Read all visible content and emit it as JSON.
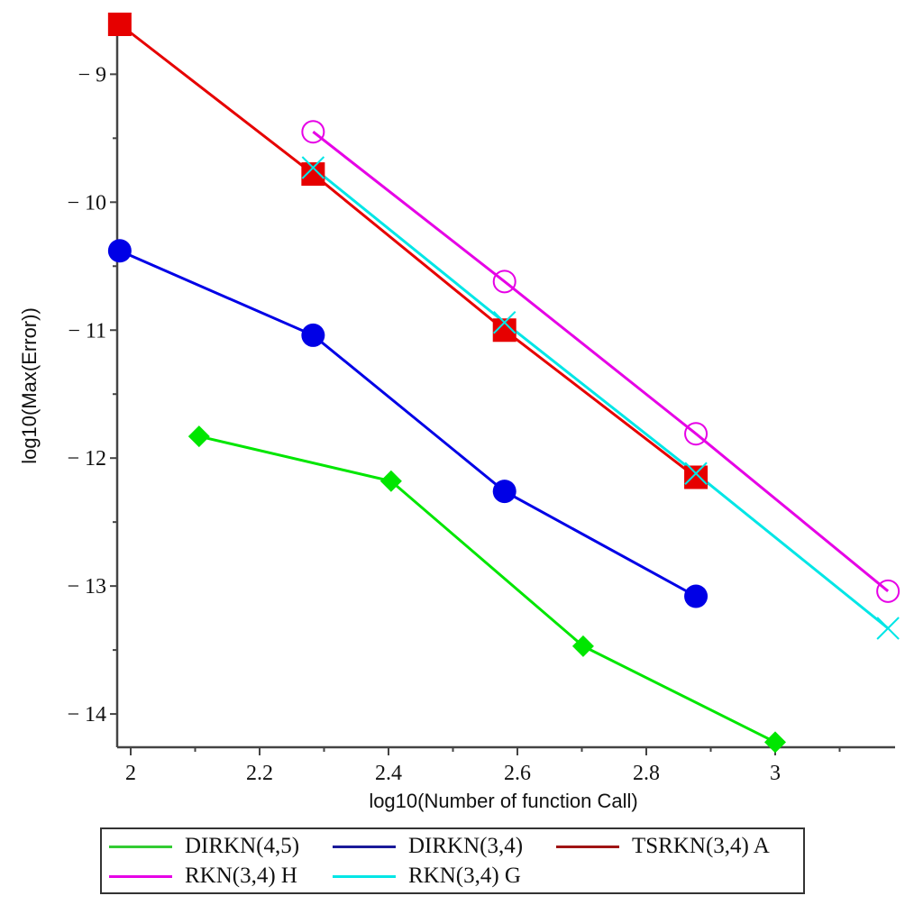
{
  "chart_data": {
    "type": "line",
    "title": "",
    "xlabel": "log10(Number of function Call)",
    "ylabel": "log10(Max(Error))",
    "xlim": [
      1.979,
      3.186
    ],
    "ylim": [
      -14.26,
      -8.61
    ],
    "x_ticks": [
      2,
      2.2,
      2.4,
      2.6,
      2.8,
      3
    ],
    "x_tick_labels": [
      "2",
      "2.2",
      "2.4",
      "2.6",
      "2.8",
      "3"
    ],
    "x_minor_ticks": [
      2.1,
      2.3,
      2.5,
      2.7,
      2.9,
      3.1
    ],
    "y_ticks": [
      -9,
      -10,
      -11,
      -12,
      -13,
      -14
    ],
    "y_tick_labels": [
      "− 9",
      "− 10",
      "− 11",
      "− 12",
      "− 13",
      "− 14"
    ],
    "y_minor_ticks": [
      -9.5,
      -10.5,
      -11.5,
      -12.5,
      -13.5
    ],
    "grid": false,
    "legend_position": "bottom",
    "series": [
      {
        "name": "DIRKN(4,5)",
        "color": "#00e600",
        "legend_color": "#33cc33",
        "marker": "diamond",
        "x": [
          2.106,
          2.404,
          2.702,
          3.0
        ],
        "y": [
          -11.83,
          -12.18,
          -13.47,
          -14.22
        ]
      },
      {
        "name": "DIRKN(3,4)",
        "color": "#0000e6",
        "legend_color": "#1a1a99",
        "marker": "circle",
        "x": [
          1.983,
          2.283,
          2.58,
          2.877
        ],
        "y": [
          -10.38,
          -11.04,
          -12.26,
          -13.08
        ]
      },
      {
        "name": "TSRKN(3,4) A",
        "color": "#e60000",
        "legend_color": "#a01414",
        "marker": "square",
        "x": [
          1.983,
          2.283,
          2.58,
          2.877
        ],
        "y": [
          -8.61,
          -9.78,
          -11.0,
          -12.15
        ]
      },
      {
        "name": "RKN(3,4) H",
        "color": "#e600e6",
        "legend_color": "#e600e6",
        "marker": "open-circle",
        "x": [
          2.283,
          2.58,
          2.877,
          3.175
        ],
        "y": [
          -9.45,
          -10.62,
          -11.81,
          -13.04
        ]
      },
      {
        "name": "RKN(3,4) G",
        "color": "#00e6e6",
        "legend_color": "#00e6e6",
        "marker": "cross",
        "x": [
          2.283,
          2.58,
          2.877,
          3.175
        ],
        "y": [
          -9.73,
          -10.94,
          -12.12,
          -13.33
        ]
      }
    ]
  }
}
